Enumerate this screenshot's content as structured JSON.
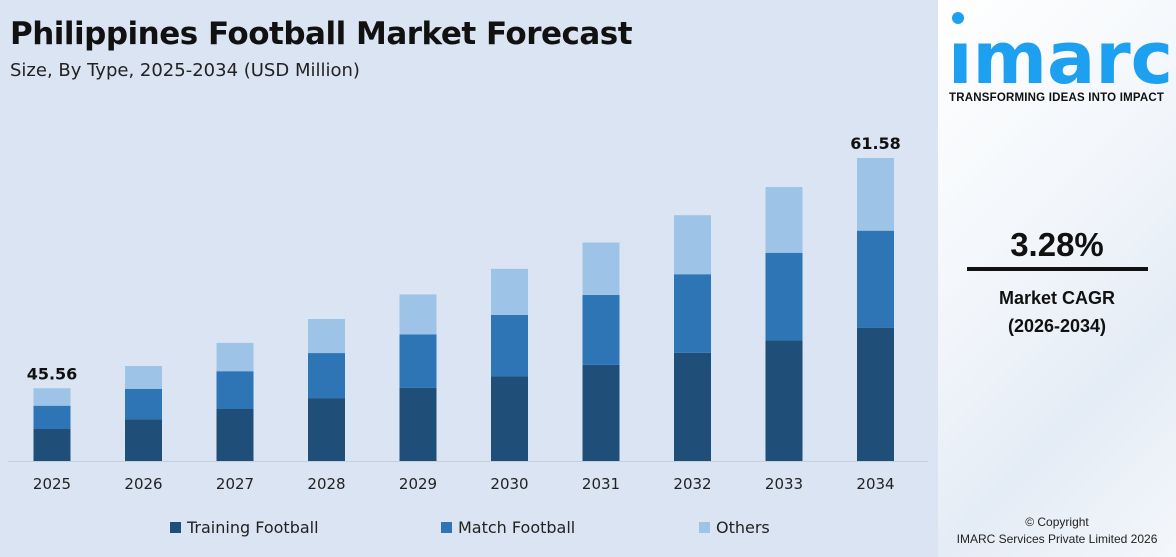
{
  "header": {
    "title": "Philippines Football Market Forecast",
    "subtitle": "Size, By Type, 2025-2034 (USD Million)"
  },
  "chart_data": {
    "type": "bar",
    "stacked": true,
    "categories": [
      "2025",
      "2026",
      "2027",
      "2028",
      "2029",
      "2030",
      "2031",
      "2032",
      "2033",
      "2034"
    ],
    "series": [
      {
        "name": "Training Football",
        "color": "#1f4e79",
        "values": [
          20.05,
          20.73,
          21.44,
          22.17,
          22.92,
          23.7,
          24.51,
          25.34,
          26.21,
          27.1
        ]
      },
      {
        "name": "Match Football",
        "color": "#2e75b6",
        "values": [
          14.58,
          15.08,
          15.59,
          16.12,
          16.67,
          17.24,
          17.82,
          18.43,
          19.06,
          19.71
        ]
      },
      {
        "name": "Others",
        "color": "#9dc3e6",
        "values": [
          10.93,
          11.3,
          11.69,
          12.09,
          12.5,
          12.93,
          13.37,
          13.83,
          14.29,
          14.77
        ]
      }
    ],
    "data_labels": [
      {
        "category": "2025",
        "text": "45.56"
      },
      {
        "category": "2034",
        "text": "61.58"
      }
    ],
    "xlabel": "",
    "ylabel": "",
    "grid": false,
    "y_axis_visible": false,
    "legend_position": "bottom"
  },
  "brand": {
    "logo": "imarc",
    "tagline": "TRANSFORMING IDEAS INTO IMPACT",
    "logo_color": "#1ea0f0"
  },
  "cagr": {
    "value": "3.28%",
    "label": "Market CAGR",
    "period": "(2026-2034)"
  },
  "footer": {
    "copyright": "© Copyright",
    "company": "IMARC Services Private Limited 2026"
  }
}
